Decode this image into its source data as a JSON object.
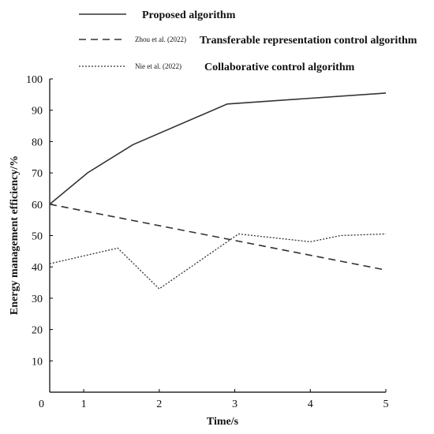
{
  "chart_data": {
    "type": "line",
    "xlabel": "Time/s",
    "ylabel": "Energy management efficiency/%",
    "xlim": [
      0.55,
      5
    ],
    "ylim": [
      0,
      100
    ],
    "x_ticks": [
      1,
      2,
      3,
      4,
      5
    ],
    "x_tick_labels": [
      "1",
      "2",
      "3",
      "4",
      "5"
    ],
    "x_origin_label": "0",
    "y_ticks": [
      10,
      20,
      30,
      40,
      50,
      60,
      70,
      80,
      90,
      100
    ],
    "y_tick_labels": [
      "10",
      "20",
      "30",
      "40",
      "50",
      "60",
      "70",
      "80",
      "90",
      "100"
    ],
    "grid": false,
    "legend_position": "top",
    "series": [
      {
        "name": "Proposed algorithm",
        "citation": "",
        "style": "solid",
        "color": "#333333",
        "points": [
          [
            0.55,
            60
          ],
          [
            1.05,
            70
          ],
          [
            1.65,
            79
          ],
          [
            2.9,
            92
          ],
          [
            5,
            95.5
          ]
        ]
      },
      {
        "name": "Transferable representation control algorithm",
        "citation": "Zhou et al. (2022)",
        "style": "dashed",
        "color": "#333333",
        "points": [
          [
            0.55,
            60
          ],
          [
            5,
            39
          ]
        ]
      },
      {
        "name": "Collaborative control algorithm",
        "citation": "Nie et al. (2022)",
        "style": "dotted",
        "color": "#333333",
        "points": [
          [
            0.55,
            41
          ],
          [
            1.45,
            46
          ],
          [
            2.0,
            33
          ],
          [
            3.05,
            50.5
          ],
          [
            4.0,
            48
          ],
          [
            4.4,
            50
          ],
          [
            5,
            50.5
          ]
        ]
      }
    ]
  }
}
